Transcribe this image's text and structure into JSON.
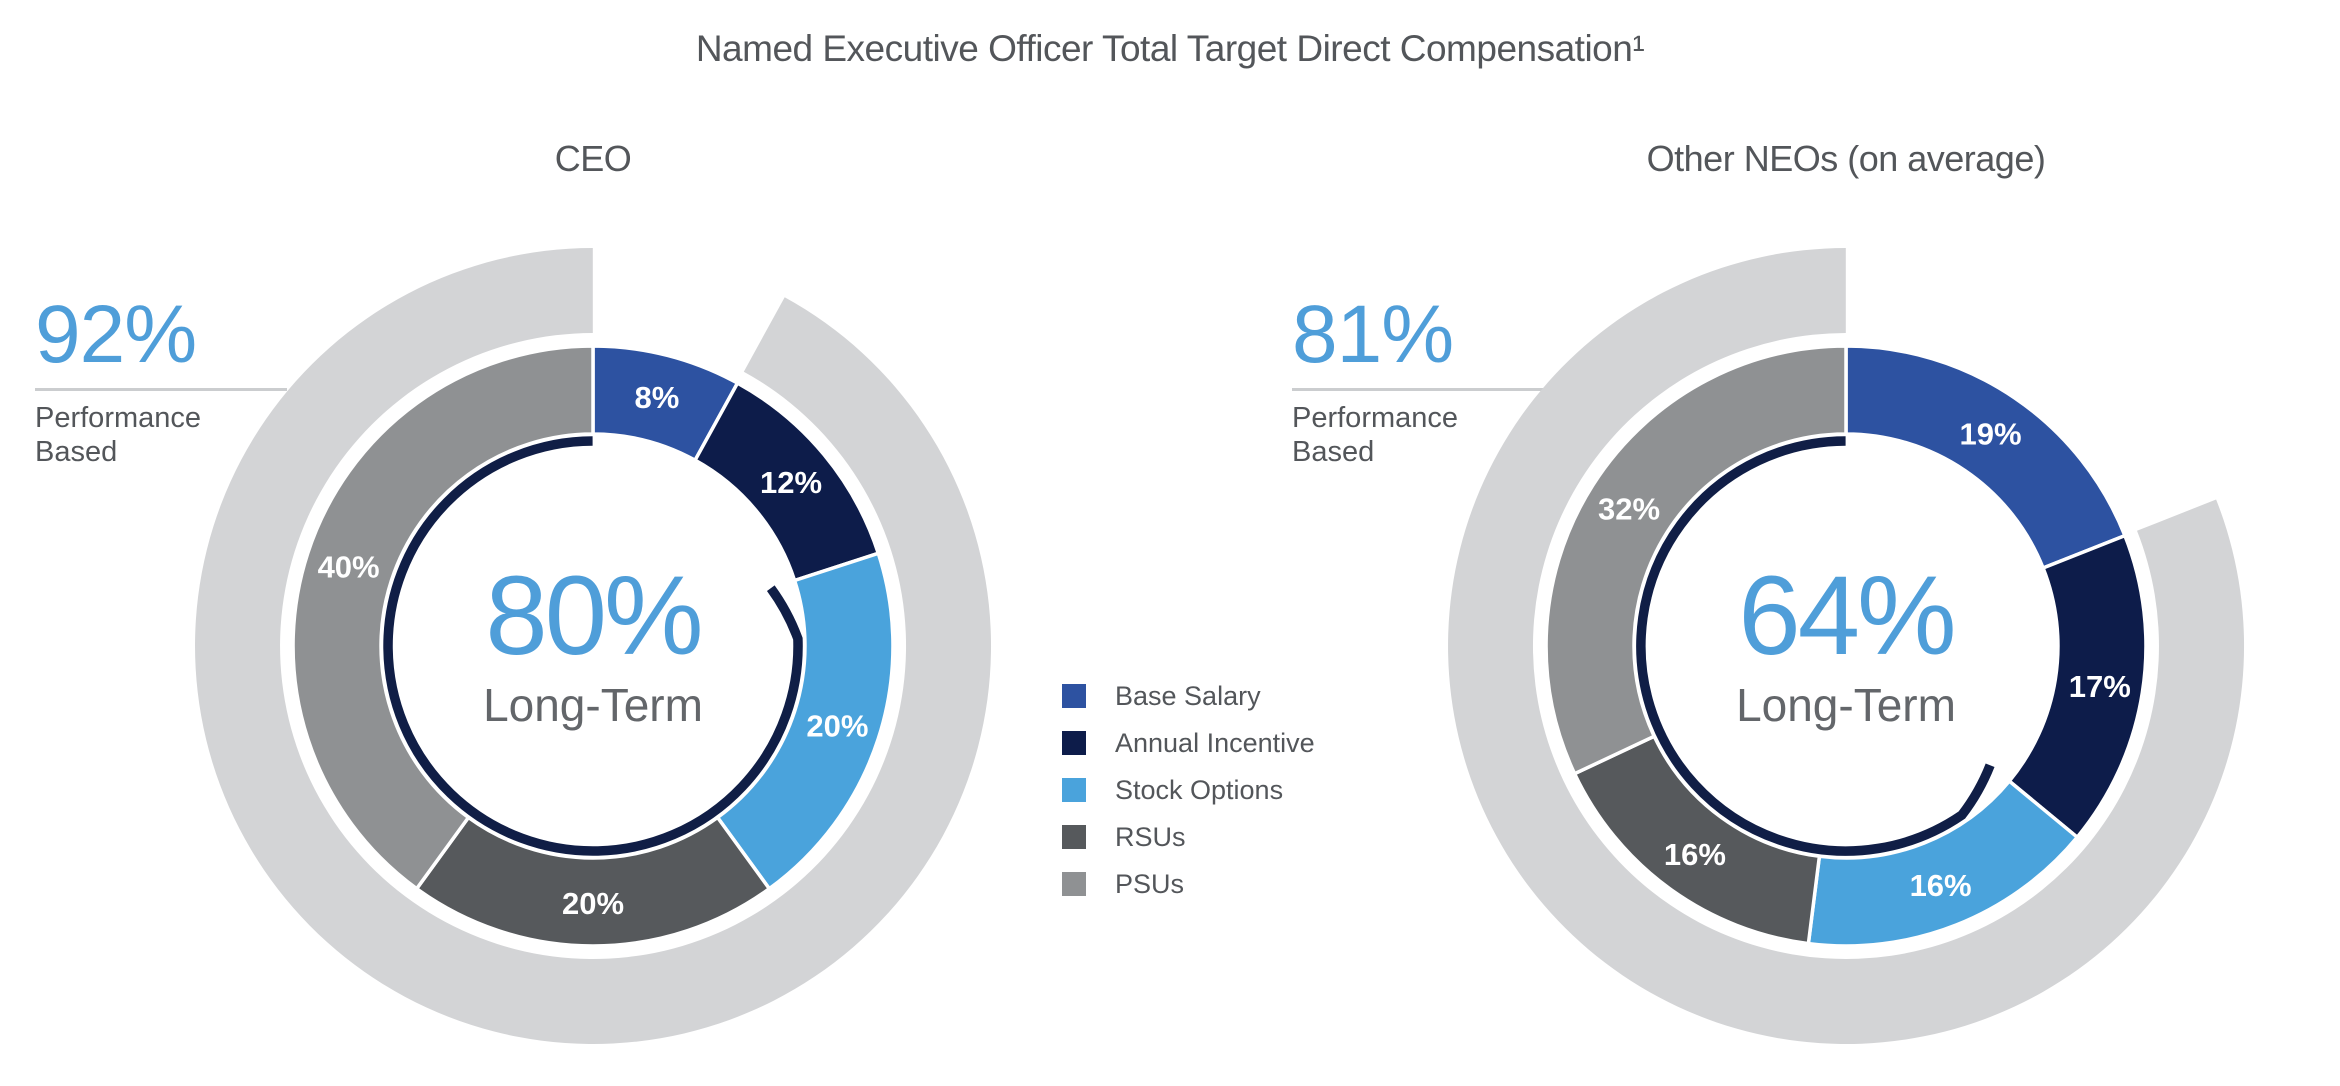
{
  "title": "Named Executive Officer Total Target Direct Compensation¹",
  "colors": {
    "accent_blue": "#4F9ED9",
    "heading_text": "#53565A",
    "center_sub_text": "#63666A",
    "outer_ring": "#D3D4D6",
    "inner_arc_navy": "#101E46",
    "segment_label": "#FFFFFF",
    "rule": "#CBCDCF"
  },
  "legend": {
    "items": [
      {
        "label": "Base Salary",
        "color": "#2D52A1"
      },
      {
        "label": "Annual Incentive",
        "color": "#0D1C4A"
      },
      {
        "label": "Stock Options",
        "color": "#4AA3DC"
      },
      {
        "label": "RSUs",
        "color": "#56595C"
      },
      {
        "label": "PSUs",
        "color": "#8F9193"
      }
    ]
  },
  "charts_ui": [
    {
      "heading": "CEO",
      "callout_value": "92%",
      "callout_lines": [
        "Performance",
        "Based"
      ],
      "center_value": "80%",
      "center_label": "Long-Term"
    },
    {
      "heading": "Other NEOs (on average)",
      "callout_value": "81%",
      "callout_lines": [
        "Performance",
        "Based"
      ],
      "center_value": "64%",
      "center_label": "Long-Term"
    }
  ],
  "chart_data": {
    "type": "pie",
    "subtype": "donut-with-outer-performance-ring",
    "title": "Named Executive Officer Total Target Direct Compensation",
    "categories": [
      "Base Salary",
      "Annual Incentive",
      "Stock Options",
      "RSUs",
      "PSUs"
    ],
    "segment_colors": [
      "#2D52A1",
      "#0D1C4A",
      "#4AA3DC",
      "#56595C",
      "#8F9193"
    ],
    "legend_position": "center-between-charts",
    "charts": [
      {
        "title": "CEO",
        "values": [
          8,
          12,
          20,
          20,
          40
        ],
        "performance_based_pct": 92,
        "long_term_pct": 80
      },
      {
        "title": "Other NEOs (on average)",
        "values": [
          19,
          17,
          16,
          16,
          32
        ],
        "performance_based_pct": 81,
        "long_term_pct": 64
      }
    ]
  }
}
